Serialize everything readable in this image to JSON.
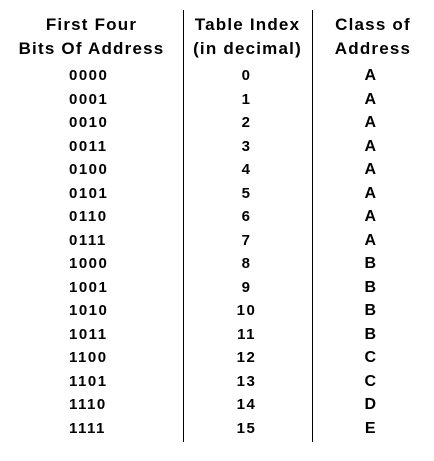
{
  "table": {
    "headers": {
      "bits": [
        "First Four",
        "Bits Of Address"
      ],
      "index": [
        "Table Index",
        "(in decimal)"
      ],
      "class": [
        "Class of",
        "Address"
      ]
    },
    "rows": [
      {
        "bits": "0000",
        "index": "0",
        "class": "A"
      },
      {
        "bits": "0001",
        "index": "1",
        "class": "A"
      },
      {
        "bits": "0010",
        "index": "2",
        "class": "A"
      },
      {
        "bits": "0011",
        "index": "3",
        "class": "A"
      },
      {
        "bits": "0100",
        "index": "4",
        "class": "A"
      },
      {
        "bits": "0101",
        "index": "5",
        "class": "A"
      },
      {
        "bits": "0110",
        "index": "6",
        "class": "A"
      },
      {
        "bits": "0111",
        "index": "7",
        "class": "A"
      },
      {
        "bits": "1000",
        "index": "8",
        "class": "B"
      },
      {
        "bits": "1001",
        "index": "9",
        "class": "B"
      },
      {
        "bits": "1010",
        "index": "10",
        "class": "B"
      },
      {
        "bits": "1011",
        "index": "11",
        "class": "B"
      },
      {
        "bits": "1100",
        "index": "12",
        "class": "C"
      },
      {
        "bits": "1101",
        "index": "13",
        "class": "C"
      },
      {
        "bits": "1110",
        "index": "14",
        "class": "D"
      },
      {
        "bits": "1111",
        "index": "15",
        "class": "E"
      }
    ]
  }
}
